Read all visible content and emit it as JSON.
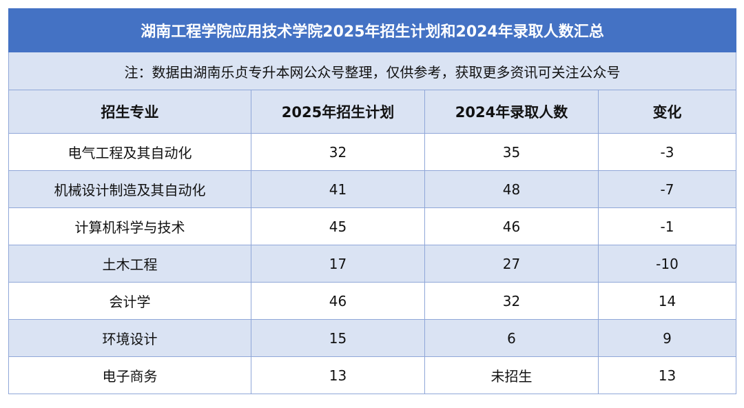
{
  "title": "湖南工程学院应用技术学院2025年招生计划和2024年录取人数汇总",
  "note": "注：数据由湖南乐贞专升本网公众号整理，仅供参考，获取更多资讯可关注公众号",
  "columns": [
    "招生专业",
    "2025年招生计划",
    "2024年录取人数",
    "变化"
  ],
  "rows": [
    [
      "电气工程及其自动化",
      "32",
      "35",
      "-3"
    ],
    [
      "机械设计制造及其自动化",
      "41",
      "48",
      "-7"
    ],
    [
      "计算机科学与技术",
      "45",
      "46",
      "-1"
    ],
    [
      "土木工程",
      "17",
      "27",
      "-10"
    ],
    [
      "会计学",
      "46",
      "32",
      "14"
    ],
    [
      "环境设计",
      "15",
      "6",
      "9"
    ],
    [
      "电子商务",
      "13",
      "未招生",
      "13"
    ]
  ]
}
